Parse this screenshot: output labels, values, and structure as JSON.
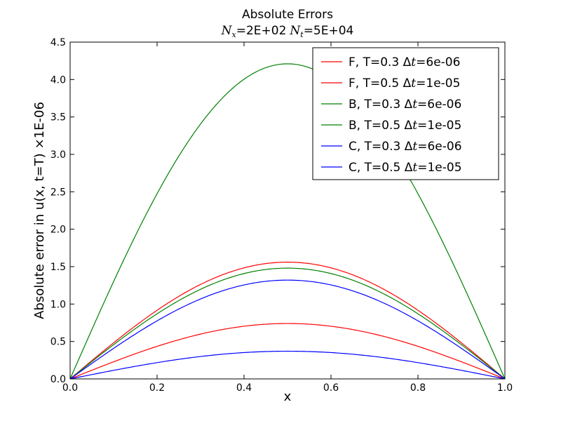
{
  "chart_data": {
    "type": "line",
    "title": "Absolute Errors",
    "subtitle_parts": {
      "nx_symbol": "N",
      "nx_sub": "x",
      "nx_value": "=2E+02",
      "nt_symbol": "N",
      "nt_sub": "t",
      "nt_value": "=5E+04"
    },
    "xlabel": "x",
    "ylabel": "Absolute error in u(x, t=T)",
    "ylabel_scale": "×1E-06",
    "xlim": [
      0.0,
      1.0
    ],
    "ylim": [
      0.0,
      4.5
    ],
    "xticks": [
      0.0,
      0.2,
      0.4,
      0.6,
      0.8,
      1.0
    ],
    "xtick_labels": [
      "0.0",
      "0.2",
      "0.4",
      "0.6",
      "0.8",
      "1.0"
    ],
    "yticks": [
      0.0,
      0.5,
      1.0,
      1.5,
      2.0,
      2.5,
      3.0,
      3.5,
      4.0,
      4.5
    ],
    "ytick_labels": [
      "0.0",
      "0.5",
      "1.0",
      "1.5",
      "2.0",
      "2.5",
      "3.0",
      "3.5",
      "4.0",
      "4.5"
    ],
    "grid": false,
    "legend_position": "top-right",
    "curve_shape": "sin(pi x)",
    "series": [
      {
        "name": "F, T=0.3 Δt=6e-06",
        "label_main": "F, T=0.3 ",
        "label_delta": "Δ",
        "label_t": "t",
        "label_value": "=6e-06",
        "color": "#ff0000",
        "peak": 1.56
      },
      {
        "name": "F, T=0.5 Δt=1e-05",
        "label_main": "F, T=0.5 ",
        "label_delta": "Δ",
        "label_t": "t",
        "label_value": "=1e-05",
        "color": "#ff0000",
        "peak": 0.74
      },
      {
        "name": "B, T=0.3 Δt=6e-06",
        "label_main": "B, T=0.3 ",
        "label_delta": "Δ",
        "label_t": "t",
        "label_value": "=6e-06",
        "color": "#008000",
        "peak": 4.21
      },
      {
        "name": "B, T=0.5 Δt=1e-05",
        "label_main": "B, T=0.5 ",
        "label_delta": "Δ",
        "label_t": "t",
        "label_value": "=1e-05",
        "color": "#008000",
        "peak": 1.48
      },
      {
        "name": "C, T=0.3 Δt=6e-06",
        "label_main": "C, T=0.3 ",
        "label_delta": "Δ",
        "label_t": "t",
        "label_value": "=6e-06",
        "color": "#0000ff",
        "peak": 1.32
      },
      {
        "name": "C, T=0.5 Δt=1e-05",
        "label_main": "C, T=0.5 ",
        "label_delta": "Δ",
        "label_t": "t",
        "label_value": "=1e-05",
        "color": "#0000ff",
        "peak": 0.37
      }
    ]
  }
}
